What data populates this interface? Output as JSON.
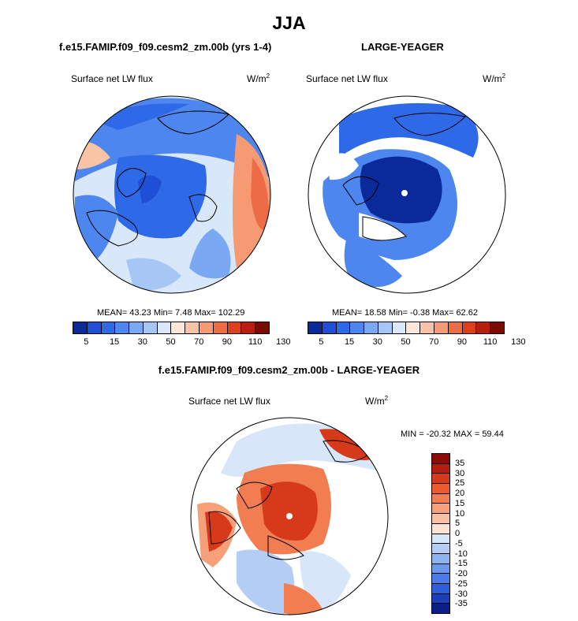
{
  "season": "JJA",
  "panels": [
    {
      "title": "f.e15.FAMIP.f09_f09.cesm2_zm.00b (yrs 1-4)",
      "label": "Surface net LW flux",
      "units_base": "W/m",
      "units_exp": "2",
      "stats": "MEAN=  43.23  Min=   7.48  Max= 102.29"
    },
    {
      "title": "LARGE-YEAGER",
      "label": "Surface net LW flux",
      "units_base": "W/m",
      "units_exp": "2",
      "stats": "MEAN=  18.58  Min=  -0.38  Max=  62.62"
    },
    {
      "title": "f.e15.FAMIP.f09_f09.cesm2_zm.00b - LARGE-YEAGER",
      "label": "Surface net LW flux",
      "units_base": "W/m",
      "units_exp": "2",
      "stats": "MIN = -20.32 MAX =  59.44"
    }
  ],
  "chart_data": [
    {
      "type": "heatmap",
      "projection": "north-polar-stereographic",
      "title": "f.e15.FAMIP.f09_f09.cesm2_zm.00b (yrs 1-4)",
      "variable": "Surface net LW flux",
      "units": "W/m2",
      "mean": 43.23,
      "min": 7.48,
      "max": 102.29,
      "colorbar_ticks": [
        "5",
        "15",
        "30",
        "50",
        "70",
        "90",
        "110",
        "130"
      ],
      "colorbar_colors": [
        "#0a2a9a",
        "#1e4fd6",
        "#2e6ae8",
        "#4c86ee",
        "#7aa8f2",
        "#a6c7f6",
        "#d9e7fb",
        "#fde7d8",
        "#f9c3a6",
        "#f59a73",
        "#ee6c45",
        "#dd3f1f",
        "#b81d0e",
        "#7a0a04"
      ]
    },
    {
      "type": "heatmap",
      "projection": "north-polar-stereographic",
      "title": "LARGE-YEAGER",
      "variable": "Surface net LW flux",
      "units": "W/m2",
      "mean": 18.58,
      "min": -0.38,
      "max": 62.62,
      "colorbar_ticks": [
        "5",
        "15",
        "30",
        "50",
        "70",
        "90",
        "110",
        "130"
      ],
      "colorbar_colors": [
        "#0a2a9a",
        "#1e4fd6",
        "#2e6ae8",
        "#4c86ee",
        "#7aa8f2",
        "#a6c7f6",
        "#d9e7fb",
        "#fde7d8",
        "#f9c3a6",
        "#f59a73",
        "#ee6c45",
        "#dd3f1f",
        "#b81d0e",
        "#7a0a04"
      ]
    },
    {
      "type": "heatmap",
      "projection": "north-polar-stereographic",
      "title": "f.e15.FAMIP.f09_f09.cesm2_zm.00b - LARGE-YEAGER",
      "variable": "Surface net LW flux",
      "units": "W/m2",
      "min": -20.32,
      "max": 59.44,
      "colorbar_ticks": [
        "35",
        "30",
        "25",
        "20",
        "15",
        "10",
        "5",
        "0",
        "-5",
        "-10",
        "-15",
        "-20",
        "-25",
        "-30",
        "-35"
      ],
      "colorbar_colors": [
        "#8b0c04",
        "#b51d0c",
        "#d63a1a",
        "#ec5a2e",
        "#f27d50",
        "#f6a07a",
        "#f9c1a4",
        "#fde3d3",
        "#d8e6fa",
        "#b3cdf5",
        "#8db3f0",
        "#6a98ea",
        "#4a7de3",
        "#2c5fd8",
        "#1a3fb8",
        "#0b1f88"
      ]
    }
  ]
}
